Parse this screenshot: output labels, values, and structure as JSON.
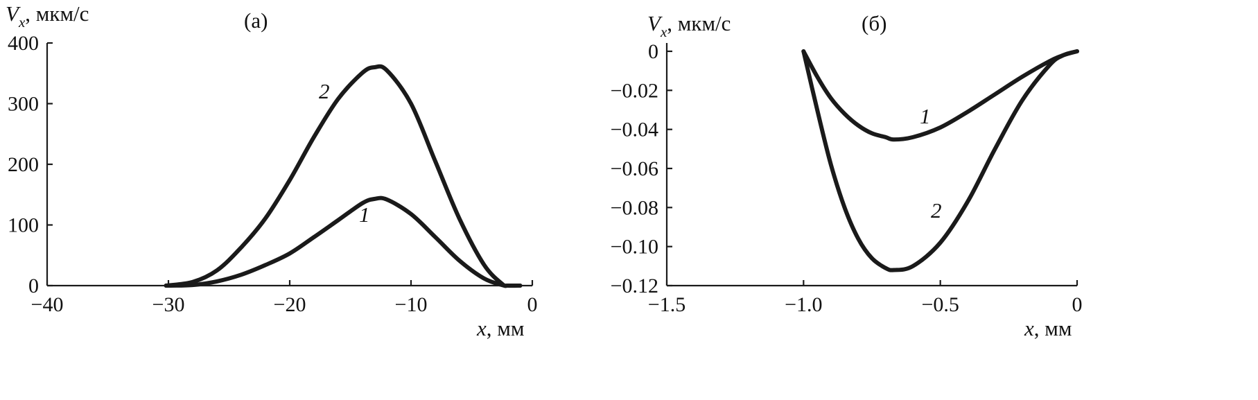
{
  "chart_data": [
    {
      "type": "line",
      "panel_label": "(а)",
      "ylabel_sym": "V",
      "ylabel_sub": "x",
      "ylabel_unit": ", мкм/с",
      "xlabel_sym": "x",
      "xlabel_unit": ", мм",
      "xlim": [
        -40,
        0
      ],
      "ylim": [
        0,
        400
      ],
      "xticks": [
        -40,
        -30,
        -20,
        -10,
        0
      ],
      "xtick_labels": [
        "−40",
        "−30",
        "−20",
        "−10",
        "0"
      ],
      "yticks": [
        0,
        100,
        200,
        300,
        400
      ],
      "ytick_labels": [
        "0",
        "100",
        "200",
        "300",
        "400"
      ],
      "series": [
        {
          "name": "1",
          "x": [
            -30.2,
            -28,
            -26,
            -24,
            -22,
            -20,
            -18,
            -16,
            -14,
            -13,
            -12,
            -10,
            -8,
            -6,
            -4,
            -2.5,
            -2,
            -1
          ],
          "y": [
            0,
            1,
            7,
            18,
            34,
            53,
            80,
            108,
            136,
            143,
            142,
            118,
            80,
            41,
            12,
            1,
            0,
            0
          ]
        },
        {
          "name": "2",
          "x": [
            -30.2,
            -28,
            -26,
            -24,
            -22,
            -20,
            -18,
            -16,
            -14,
            -13,
            -12,
            -10,
            -8,
            -6,
            -4,
            -2.5,
            -2,
            -1
          ],
          "y": [
            0,
            6,
            25,
            63,
            111,
            174,
            245,
            308,
            351,
            360,
            355,
            300,
            205,
            110,
            35,
            3,
            0,
            0
          ]
        }
      ],
      "curve_labels": [
        "1",
        "2"
      ]
    },
    {
      "type": "line",
      "panel_label": "(б)",
      "ylabel_sym": "V",
      "ylabel_sub": "x",
      "ylabel_unit": ", мкм/с",
      "xlabel_sym": "x",
      "xlabel_unit": ", мм",
      "xlim": [
        -1.5,
        0
      ],
      "ylim": [
        -0.12,
        0
      ],
      "xticks": [
        -1.5,
        -1.0,
        -0.5,
        0
      ],
      "xtick_labels": [
        "−1.5",
        "−1.0",
        "−0.5",
        "0"
      ],
      "yticks": [
        0,
        -0.02,
        -0.04,
        -0.06,
        -0.08,
        -0.1,
        -0.12
      ],
      "ytick_labels": [
        "0",
        "−0.02",
        "−0.04",
        "−0.06",
        "−0.08",
        "−0.10",
        "−0.12"
      ],
      "series": [
        {
          "name": "1",
          "x": [
            -1.0,
            -0.95,
            -0.9,
            -0.85,
            -0.8,
            -0.75,
            -0.7,
            -0.67,
            -0.6,
            -0.5,
            -0.4,
            -0.3,
            -0.2,
            -0.1,
            -0.05,
            0
          ],
          "y": [
            0,
            -0.013,
            -0.024,
            -0.032,
            -0.038,
            -0.042,
            -0.044,
            -0.0452,
            -0.044,
            -0.039,
            -0.031,
            -0.022,
            -0.013,
            -0.005,
            -0.002,
            0
          ]
        },
        {
          "name": "2",
          "x": [
            -1.0,
            -0.95,
            -0.9,
            -0.85,
            -0.8,
            -0.75,
            -0.7,
            -0.67,
            -0.6,
            -0.5,
            -0.4,
            -0.3,
            -0.2,
            -0.1,
            -0.05,
            0
          ],
          "y": [
            0,
            -0.03,
            -0.058,
            -0.08,
            -0.096,
            -0.106,
            -0.111,
            -0.112,
            -0.11,
            -0.098,
            -0.077,
            -0.05,
            -0.025,
            -0.007,
            -0.002,
            0
          ]
        }
      ],
      "curve_labels": [
        "1",
        "2"
      ]
    }
  ]
}
